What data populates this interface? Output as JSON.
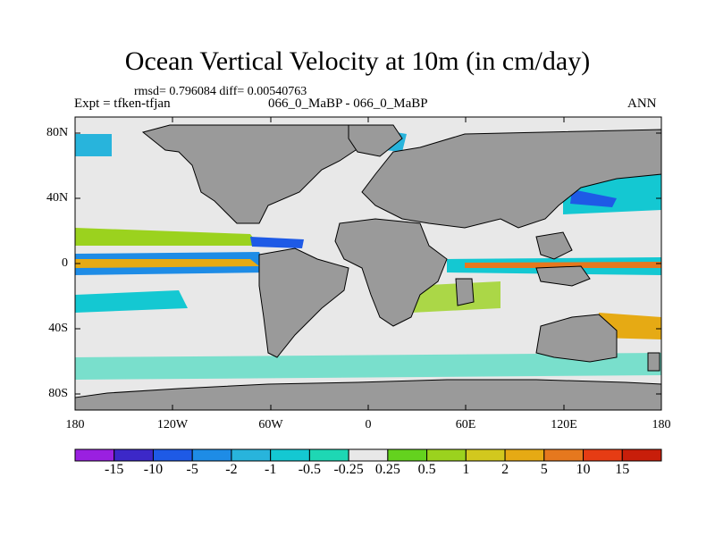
{
  "title": "Ocean Vertical Velocity at 10m (in cm/day)",
  "stats_line": "rmsd= 0.796084 diff= 0.00540763",
  "experiment_label": "Expt = tfken-tfjan",
  "case_label": "066_0_MaBP - 066_0_MaBP",
  "season_label": "ANN",
  "y_tick_labels": [
    "80N",
    "40N",
    "0",
    "40S",
    "80S"
  ],
  "x_tick_labels": [
    "180",
    "120W",
    "60W",
    "0",
    "60E",
    "120E",
    "180"
  ],
  "colorbar": {
    "labels": [
      "-15",
      "-10",
      "-5",
      "-2",
      "-1",
      "-0.5",
      "-0.25",
      "0.25",
      "0.5",
      "1",
      "2",
      "5",
      "10",
      "15"
    ],
    "colors": [
      "#9a20e0",
      "#3c28c8",
      "#1e5ae6",
      "#1e8ce6",
      "#28b4dc",
      "#14c8d2",
      "#1ed7b4",
      "#e8e8e8",
      "#64d21e",
      "#9bd21e",
      "#d2c81e",
      "#e6aa14",
      "#e6781e",
      "#e63c14",
      "#c81e0a"
    ]
  },
  "colors": {
    "land": "#9a9a9a",
    "ocean_neutral": "#e8e8e8"
  }
}
